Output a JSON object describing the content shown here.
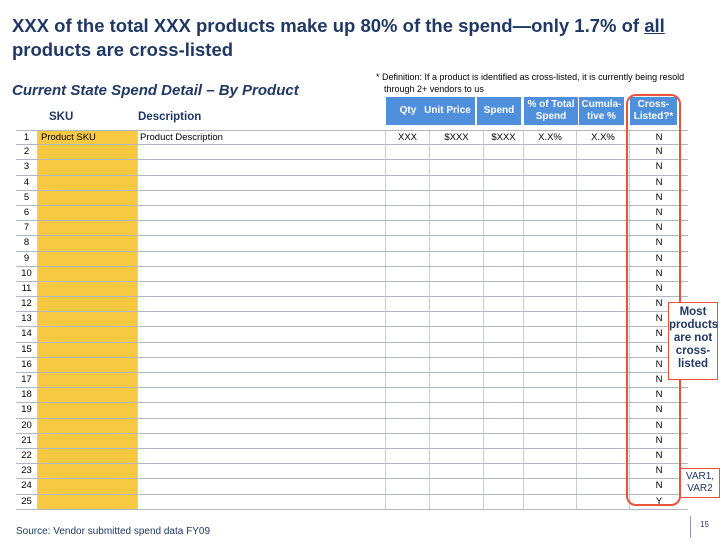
{
  "title": {
    "line_main": "XXX of the total XXX products make up 80% of the spend—only 1.7% of ",
    "line_underlined": "all",
    "line_end": " products are cross-listed"
  },
  "subtitle": "Current State Spend Detail – By Product",
  "definition": {
    "line1": "* Definition: If a product is identified as cross-listed, it is currently being resold",
    "line2": "through 2+ vendors to us"
  },
  "columns": {
    "sku": "SKU",
    "description": "Description",
    "qty": "Qty",
    "unit_price": "Unit Price",
    "spend": "Spend",
    "pct_total_line1": "% of Total",
    "pct_total_line2": "Spend",
    "cumulative_line1": "Cumula-",
    "cumulative_line2": "tive %",
    "cross_line1": "Cross-",
    "cross_line2": "Listed?*"
  },
  "rows": [
    {
      "num": "1",
      "sku": "Product SKU",
      "description": "Product Description",
      "qty": "XXX",
      "unit_price": "$XXX",
      "spend": "$XXX",
      "pct": "X.X%",
      "cum": "X.X%",
      "cross": "N"
    },
    {
      "num": "2",
      "cross": "N"
    },
    {
      "num": "3",
      "cross": "N"
    },
    {
      "num": "4",
      "cross": "N"
    },
    {
      "num": "5",
      "cross": "N"
    },
    {
      "num": "6",
      "cross": "N"
    },
    {
      "num": "7",
      "cross": "N"
    },
    {
      "num": "8",
      "cross": "N"
    },
    {
      "num": "9",
      "cross": "N"
    },
    {
      "num": "10",
      "cross": "N"
    },
    {
      "num": "11",
      "cross": "N"
    },
    {
      "num": "12",
      "cross": "N"
    },
    {
      "num": "13",
      "cross": "N"
    },
    {
      "num": "14",
      "cross": "N"
    },
    {
      "num": "15",
      "cross": "N"
    },
    {
      "num": "16",
      "cross": "N"
    },
    {
      "num": "17",
      "cross": "N"
    },
    {
      "num": "18",
      "cross": "N"
    },
    {
      "num": "19",
      "cross": "N"
    },
    {
      "num": "20",
      "cross": "N"
    },
    {
      "num": "21",
      "cross": "N"
    },
    {
      "num": "22",
      "cross": "N"
    },
    {
      "num": "23",
      "cross": "N"
    },
    {
      "num": "24",
      "cross": "N"
    },
    {
      "num": "25",
      "cross": "Y"
    }
  ],
  "callouts": {
    "most_lines": [
      "Most",
      "products",
      "are not",
      "cross-",
      "listed"
    ],
    "var_lines": [
      "VAR1,",
      "VAR2"
    ]
  },
  "colors": {
    "title": "#1f3864",
    "header_fill": "#4f8fdc",
    "sku_fill": "#f7c842",
    "highlight": "#e8533a"
  },
  "source": "Source: Vendor submitted spend data FY09",
  "page_number": "15"
}
